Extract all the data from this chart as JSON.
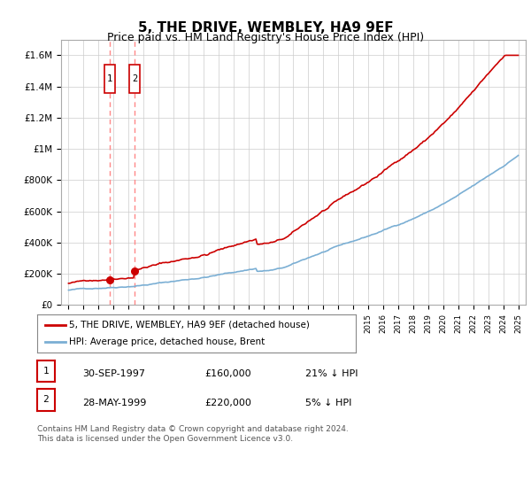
{
  "title": "5, THE DRIVE, WEMBLEY, HA9 9EF",
  "subtitle": "Price paid vs. HM Land Registry's House Price Index (HPI)",
  "title_fontsize": 11,
  "subtitle_fontsize": 9,
  "legend_line1": "5, THE DRIVE, WEMBLEY, HA9 9EF (detached house)",
  "legend_line2": "HPI: Average price, detached house, Brent",
  "sale_color": "#cc0000",
  "hpi_color": "#7bafd4",
  "sale_dates_num": [
    1997.75,
    1999.4
  ],
  "sale_prices": [
    160000,
    220000
  ],
  "sale_labels": [
    "1",
    "2"
  ],
  "sale_table": [
    {
      "num": "1",
      "date": "30-SEP-1997",
      "price": "£160,000",
      "pct": "21% ↓ HPI"
    },
    {
      "num": "2",
      "date": "28-MAY-1999",
      "price": "£220,000",
      "pct": "5% ↓ HPI"
    }
  ],
  "footer": "Contains HM Land Registry data © Crown copyright and database right 2024.\nThis data is licensed under the Open Government Licence v3.0.",
  "ylim": [
    0,
    1700000
  ],
  "yticks": [
    0,
    200000,
    400000,
    600000,
    800000,
    1000000,
    1200000,
    1400000,
    1600000
  ],
  "ytick_labels": [
    "£0",
    "£200K",
    "£400K",
    "£600K",
    "£800K",
    "£1M",
    "£1.2M",
    "£1.4M",
    "£1.6M"
  ],
  "xmin": 1994.5,
  "xmax": 2025.5,
  "background_color": "#ffffff",
  "grid_color": "#cccccc"
}
